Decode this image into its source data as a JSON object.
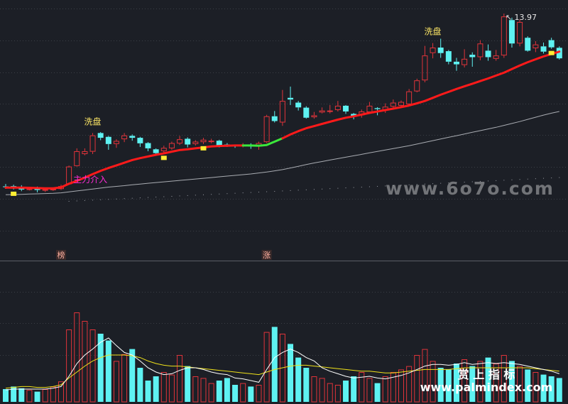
{
  "chart_data": {
    "type": "candlestick",
    "price_panel": {
      "max_price_label": "13.97",
      "ylim": [
        6.38,
        14.3
      ],
      "candles": [
        [
          6.75,
          6.72,
          6.85,
          6.65
        ],
        [
          6.76,
          6.7,
          6.82,
          6.62
        ],
        [
          6.73,
          6.62,
          6.8,
          6.55
        ],
        [
          6.63,
          6.66,
          6.72,
          6.58
        ],
        [
          6.66,
          6.6,
          6.74,
          6.5
        ],
        [
          6.58,
          6.63,
          6.68,
          6.52
        ],
        [
          6.62,
          6.65,
          6.7,
          6.56
        ],
        [
          6.64,
          6.76,
          6.82,
          6.6
        ],
        [
          6.84,
          7.58,
          7.62,
          6.84
        ],
        [
          7.6,
          8.22,
          8.34,
          7.58
        ],
        [
          8.1,
          8.22,
          8.34,
          8.05
        ],
        [
          8.2,
          8.88,
          8.98,
          8.1
        ],
        [
          8.98,
          8.78,
          9.02,
          8.68
        ],
        [
          8.82,
          8.52,
          8.86,
          8.28
        ],
        [
          8.52,
          8.65,
          8.72,
          8.36
        ],
        [
          8.72,
          8.88,
          8.98,
          8.6
        ],
        [
          8.86,
          8.78,
          8.92,
          8.66
        ],
        [
          8.78,
          8.55,
          8.82,
          8.4
        ],
        [
          8.56,
          8.34,
          8.6,
          8.22
        ],
        [
          8.3,
          8.14,
          8.34,
          8.05
        ],
        [
          8.22,
          8.36,
          8.45,
          8.12
        ],
        [
          8.34,
          8.56,
          8.62,
          8.28
        ],
        [
          8.54,
          8.72,
          8.86,
          8.48
        ],
        [
          8.74,
          8.5,
          8.8,
          8.38
        ],
        [
          8.52,
          8.62,
          8.68,
          8.46
        ],
        [
          8.6,
          8.7,
          8.78,
          8.52
        ],
        [
          8.62,
          8.66,
          8.74,
          8.55
        ],
        [
          8.66,
          8.46,
          8.7,
          8.38
        ],
        [
          8.5,
          8.46,
          8.56,
          8.4
        ],
        [
          8.46,
          8.44,
          8.5,
          8.36
        ],
        [
          8.42,
          8.5,
          8.56,
          8.38
        ],
        [
          8.48,
          8.42,
          8.55,
          8.32
        ],
        [
          8.42,
          8.56,
          8.62,
          8.28
        ],
        [
          8.6,
          9.68,
          9.74,
          8.56
        ],
        [
          9.68,
          9.48,
          9.9,
          9.42
        ],
        [
          9.42,
          10.32,
          10.78,
          9.28
        ],
        [
          10.45,
          10.38,
          10.92,
          10.15
        ],
        [
          10.25,
          10.05,
          10.32,
          9.92
        ],
        [
          10.04,
          9.62,
          10.1,
          9.58
        ],
        [
          9.64,
          9.72,
          9.86,
          9.58
        ],
        [
          9.84,
          9.92,
          10.05,
          9.8
        ],
        [
          9.92,
          9.92,
          10.15,
          9.8
        ],
        [
          9.94,
          10.12,
          10.32,
          9.88
        ],
        [
          10.12,
          9.88,
          10.15,
          9.78
        ],
        [
          9.78,
          9.68,
          9.82,
          9.55
        ],
        [
          9.72,
          9.88,
          9.96,
          9.62
        ],
        [
          9.85,
          10.12,
          10.28,
          9.8
        ],
        [
          10.02,
          9.98,
          10.06,
          9.72
        ],
        [
          9.92,
          10.08,
          10.22,
          9.82
        ],
        [
          10.08,
          10.25,
          10.38,
          9.98
        ],
        [
          10.12,
          10.28,
          10.34,
          10.05
        ],
        [
          10.18,
          10.72,
          10.82,
          10.14
        ],
        [
          10.72,
          11.18,
          11.25,
          10.68
        ],
        [
          11.18,
          12.22,
          12.62,
          11.1
        ],
        [
          12.32,
          12.55,
          12.74,
          12.1
        ],
        [
          12.55,
          12.32,
          12.92,
          12.12
        ],
        [
          12.4,
          11.96,
          12.45,
          11.85
        ],
        [
          11.96,
          11.85,
          12.12,
          11.58
        ],
        [
          11.82,
          12.08,
          12.48,
          11.72
        ],
        [
          12.25,
          12.15,
          12.35,
          11.75
        ],
        [
          12.15,
          12.72,
          12.86,
          12.02
        ],
        [
          12.42,
          12.15,
          12.68,
          12.0
        ],
        [
          12.08,
          12.22,
          12.45,
          12.0
        ],
        [
          12.22,
          13.85,
          13.97,
          12.12
        ],
        [
          13.7,
          12.72,
          13.8,
          12.55
        ],
        [
          12.72,
          13.62,
          13.72,
          12.6
        ],
        [
          12.96,
          12.42,
          13.02,
          12.38
        ],
        [
          12.52,
          12.68,
          12.82,
          12.36
        ],
        [
          12.6,
          12.38,
          12.76,
          12.3
        ],
        [
          12.86,
          12.56,
          12.96,
          12.5
        ],
        [
          12.54,
          12.1,
          12.6,
          12.05
        ]
      ],
      "short_ma": [
        6.7,
        6.7,
        6.7,
        6.69,
        6.68,
        6.67,
        6.67,
        6.71,
        6.86,
        6.98,
        7.12,
        7.26,
        7.4,
        7.52,
        7.63,
        7.74,
        7.85,
        7.93,
        8.0,
        8.07,
        8.13,
        8.2,
        8.27,
        8.3,
        8.34,
        8.38,
        8.42,
        8.44,
        8.45,
        8.46,
        8.46,
        8.46,
        8.45,
        8.48,
        8.62,
        8.76,
        8.92,
        9.06,
        9.18,
        9.27,
        9.36,
        9.45,
        9.54,
        9.62,
        9.68,
        9.75,
        9.82,
        9.88,
        9.94,
        10.0,
        10.06,
        10.13,
        10.22,
        10.32,
        10.45,
        10.58,
        10.7,
        10.82,
        10.93,
        11.04,
        11.15,
        11.26,
        11.38,
        11.5,
        11.65,
        11.8,
        11.94,
        12.06,
        12.18,
        12.28,
        12.38
      ],
      "short_ma_green_range": [
        30,
        34
      ],
      "long_ma": [
        6.4,
        6.41,
        6.42,
        6.43,
        6.44,
        6.45,
        6.46,
        6.48,
        6.52,
        6.56,
        6.6,
        6.64,
        6.68,
        6.72,
        6.75,
        6.78,
        6.82,
        6.85,
        6.88,
        6.91,
        6.94,
        6.97,
        7.0,
        7.03,
        7.06,
        7.09,
        7.12,
        7.15,
        7.18,
        7.21,
        7.24,
        7.27,
        7.31,
        7.35,
        7.4,
        7.45,
        7.52,
        7.59,
        7.66,
        7.73,
        7.79,
        7.85,
        7.91,
        7.97,
        8.03,
        8.09,
        8.15,
        8.21,
        8.27,
        8.33,
        8.39,
        8.45,
        8.52,
        8.59,
        8.66,
        8.73,
        8.8,
        8.87,
        8.94,
        9.01,
        9.08,
        9.15,
        9.22,
        9.3,
        9.38,
        9.46,
        9.55,
        9.64,
        9.73,
        9.81,
        9.88
      ],
      "extra_dotted_line": [
        6.0,
        7.12
      ],
      "yellow_markers": [
        1,
        20,
        25,
        69
      ],
      "annotations": [
        {
          "text": "洗盘",
          "index": 11
        },
        {
          "text": "主力介入",
          "index": 8
        },
        {
          "text": "洗盘",
          "index": 54
        }
      ]
    },
    "date_markers": [
      {
        "text": "榜",
        "index": 7
      },
      {
        "text": "涨",
        "index": 33
      }
    ],
    "volume_panel": {
      "ylim": [
        0,
        100
      ],
      "volume": [
        15,
        18,
        16,
        14,
        12,
        15,
        18,
        24,
        85,
        105,
        95,
        85,
        80,
        72,
        48,
        56,
        62,
        40,
        25,
        30,
        35,
        32,
        55,
        42,
        30,
        28,
        22,
        25,
        28,
        20,
        22,
        18,
        20,
        82,
        88,
        80,
        68,
        52,
        40,
        30,
        28,
        22,
        20,
        25,
        30,
        35,
        28,
        22,
        30,
        35,
        38,
        42,
        55,
        62,
        48,
        40,
        38,
        45,
        50,
        42,
        48,
        52,
        45,
        55,
        48,
        42,
        38,
        35,
        32,
        30,
        28
      ],
      "ma_white": [
        14,
        15,
        15,
        15,
        15,
        15,
        16,
        18,
        30,
        45,
        55,
        62,
        70,
        75,
        66,
        58,
        55,
        48,
        40,
        35,
        32,
        33,
        37,
        40,
        40,
        38,
        35,
        33,
        32,
        28,
        27,
        25,
        23,
        38,
        52,
        58,
        62,
        58,
        52,
        48,
        40,
        36,
        33,
        30,
        28,
        29,
        30,
        28,
        27,
        29,
        31,
        34,
        38,
        42,
        44,
        44,
        43,
        44,
        46,
        44,
        45,
        46,
        45,
        46,
        45,
        44,
        42,
        40,
        38,
        36,
        33
      ],
      "ma_yellow": [
        16,
        17,
        18,
        18,
        17,
        17,
        18,
        20,
        28,
        35,
        42,
        48,
        52,
        55,
        55,
        55,
        54,
        52,
        48,
        45,
        43,
        42,
        42,
        41,
        40,
        39,
        38,
        37,
        36,
        35,
        34,
        33,
        32,
        35,
        38,
        40,
        42,
        43,
        43,
        42,
        41,
        40,
        39,
        38,
        37,
        36,
        36,
        35,
        34,
        34,
        35,
        36,
        37,
        38,
        38,
        38,
        38,
        39,
        40,
        40,
        40,
        40,
        40,
        40,
        40,
        40,
        40,
        39,
        38,
        37,
        36
      ]
    }
  },
  "watermarks": {
    "site": "www.6o7o.com",
    "brand": "赏 上 指 标",
    "footer_site": "www.palmindex.com"
  },
  "colors": {
    "background": "#1c1f26",
    "up": "#e0343a",
    "down": "#5ef2f2",
    "ma_short": "#ff1a1a",
    "ma_short_alt": "#3be83b",
    "ma_long": "#a9acb2",
    "annotation": "#ffe866",
    "annotation_alt": "#ff2bd6",
    "vol_ma_white": "#ffffff",
    "vol_ma_yellow": "#f0e21a",
    "marker": "#ffee33",
    "grid": "#3b3f46"
  }
}
